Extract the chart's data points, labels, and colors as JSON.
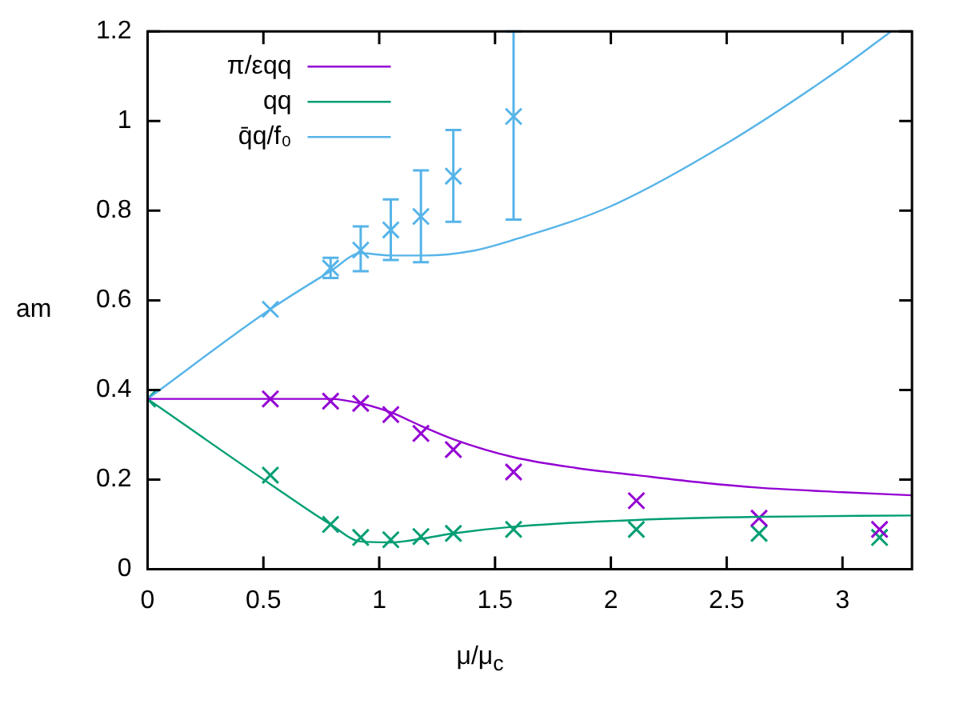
{
  "chart_data": {
    "type": "scatter",
    "xlabel": "μ/μ$_{c}$",
    "ylabel": "am",
    "xlim": [
      0,
      3.3
    ],
    "ylim": [
      0,
      1.2
    ],
    "xticks": [
      0,
      0.5,
      1,
      1.5,
      2,
      2.5,
      3
    ],
    "yticks": [
      0,
      0.2,
      0.4,
      0.6,
      0.8,
      1,
      1.2
    ],
    "grid": false,
    "legend": "top left",
    "series": [
      {
        "type": "line",
        "name": "π/εqq",
        "color": "#9400d3",
        "marker": "none",
        "x": [
          0,
          0.53,
          0.79,
          0.92,
          1.05,
          1.18,
          1.32,
          1.58,
          1.85,
          2.11,
          2.4,
          2.64,
          3.0,
          3.3
        ],
        "values": [
          0.38,
          0.38,
          0.38,
          0.37,
          0.35,
          0.32,
          0.29,
          0.25,
          0.226,
          0.21,
          0.193,
          0.182,
          0.172,
          0.165
        ]
      },
      {
        "type": "line",
        "name": "qq",
        "color": "#009e73",
        "marker": "none",
        "x": [
          0,
          0.53,
          0.79,
          0.92,
          1.05,
          1.18,
          1.32,
          1.58,
          2.11,
          2.64,
          3.3
        ],
        "values": [
          0.38,
          0.19,
          0.1,
          0.062,
          0.06,
          0.068,
          0.08,
          0.095,
          0.11,
          0.117,
          0.12
        ]
      },
      {
        "type": "line",
        "name": "q̄q/f₀",
        "color": "#56b4e9",
        "marker": "none",
        "x": [
          0,
          0.53,
          0.79,
          0.92,
          1.05,
          1.2,
          1.4,
          1.58,
          2.0,
          2.5,
          3.0,
          3.21
        ],
        "values": [
          0.38,
          0.58,
          0.665,
          0.705,
          0.7,
          0.7,
          0.71,
          0.735,
          0.81,
          0.95,
          1.12,
          1.2
        ]
      },
      {
        "color": "#9400d3",
        "marker": "cross",
        "x": [
          0.53,
          0.79,
          0.92,
          1.05,
          1.18,
          1.32,
          1.58,
          2.11,
          2.64,
          3.16
        ],
        "values": [
          0.38,
          0.375,
          0.37,
          0.345,
          0.303,
          0.267,
          0.217,
          0.153,
          0.114,
          0.089
        ]
      },
      {
        "color": "#009e73",
        "marker": "cross",
        "x": [
          0,
          0.53,
          0.79,
          0.92,
          1.05,
          1.18,
          1.32,
          1.58,
          2.11,
          2.64,
          3.16
        ],
        "values": [
          0.38,
          0.21,
          0.1,
          0.071,
          0.066,
          0.073,
          0.08,
          0.089,
          0.089,
          0.08,
          0.071
        ]
      },
      {
        "color": "#56b4e9",
        "marker": "cross",
        "x": [
          0.53,
          0.79,
          0.92,
          1.05,
          1.18,
          1.32,
          1.58
        ],
        "values": [
          0.58,
          0.672,
          0.712,
          0.757,
          0.787,
          0.877,
          1.01
        ],
        "errors": [
          null,
          [
            0.65,
            0.695
          ],
          [
            0.665,
            0.765
          ],
          [
            0.69,
            0.825
          ],
          [
            0.685,
            0.89
          ],
          [
            0.775,
            0.98
          ],
          [
            0.78,
            1.2
          ]
        ]
      }
    ]
  }
}
